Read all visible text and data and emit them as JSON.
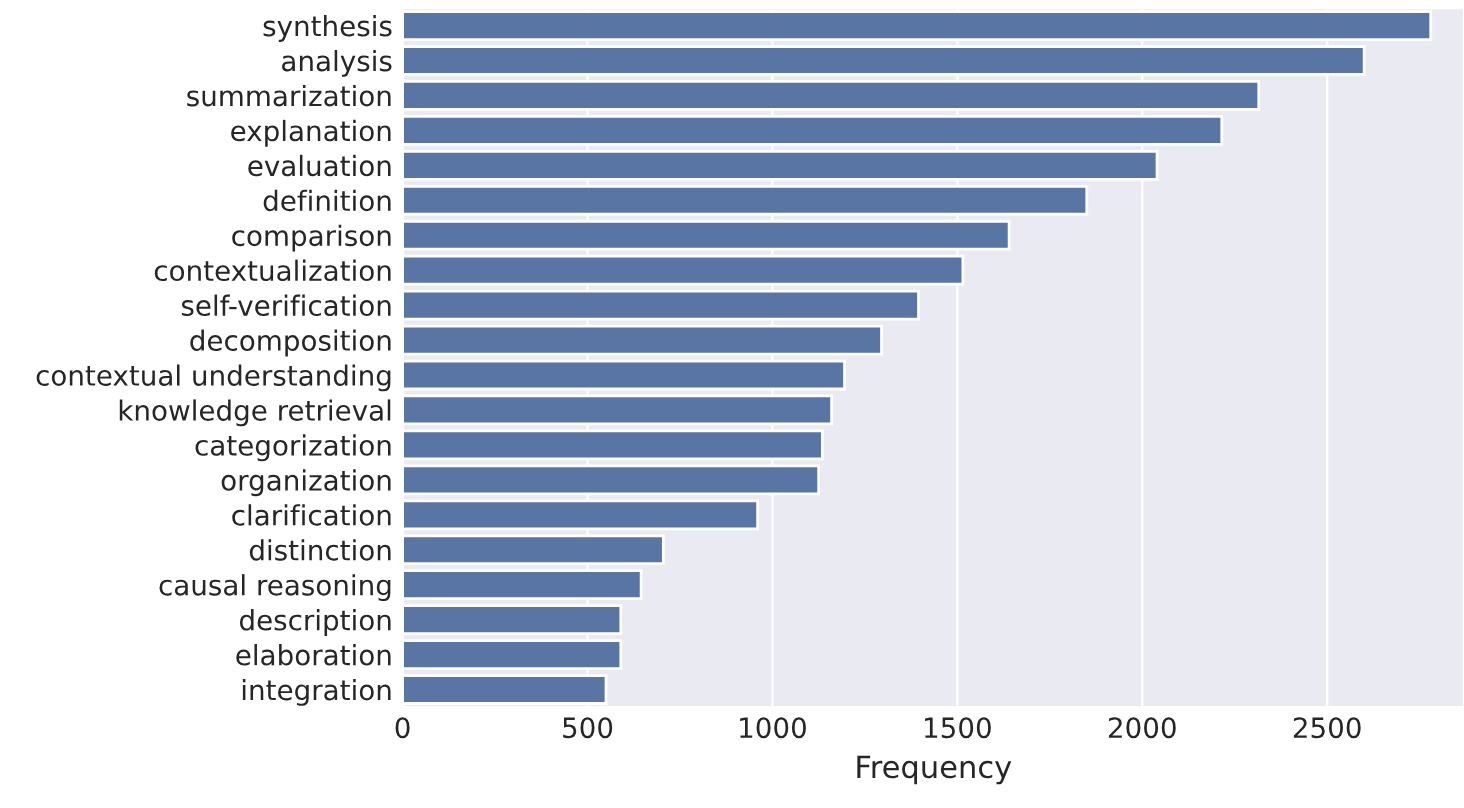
{
  "chart_data": {
    "type": "bar",
    "orientation": "horizontal",
    "xlabel": "Frequency",
    "categories": [
      "synthesis",
      "analysis",
      "summarization",
      "explanation",
      "evaluation",
      "definition",
      "comparison",
      "contextualization",
      "self-verification",
      "decomposition",
      "contextual understanding",
      "knowledge retrieval",
      "categorization",
      "organization",
      "clarification",
      "distinction",
      "causal reasoning",
      "description",
      "elaboration",
      "integration"
    ],
    "values": [
      2780,
      2600,
      2315,
      2215,
      2040,
      1850,
      1640,
      1515,
      1395,
      1295,
      1195,
      1160,
      1135,
      1125,
      960,
      705,
      645,
      590,
      590,
      550
    ],
    "color": "#5875a4",
    "xlim": [
      0,
      2870
    ],
    "xticks": [
      0,
      500,
      1000,
      1500,
      2000,
      2500
    ],
    "grid": "x"
  }
}
